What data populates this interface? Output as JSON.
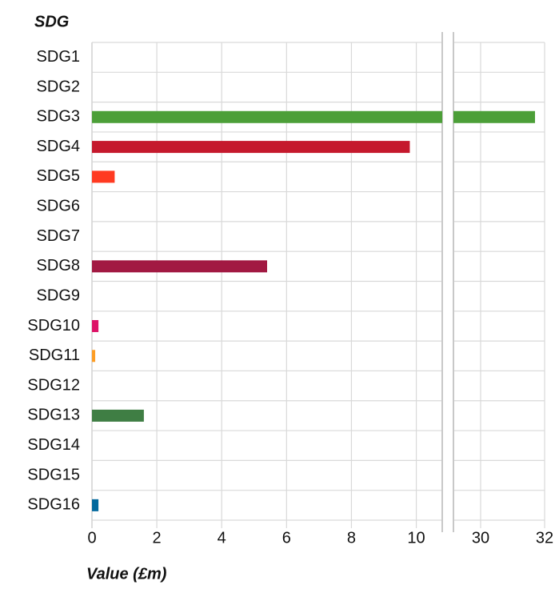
{
  "chart_data": {
    "type": "bar",
    "orientation": "horizontal",
    "y_axis_title": "SDG",
    "x_axis_label": "Value (£m)",
    "categories": [
      "SDG1",
      "SDG2",
      "SDG3",
      "SDG4",
      "SDG5",
      "SDG6",
      "SDG7",
      "SDG8",
      "SDG9",
      "SDG10",
      "SDG11",
      "SDG12",
      "SDG13",
      "SDG14",
      "SDG15",
      "SDG16"
    ],
    "values": [
      0,
      0,
      31.7,
      9.8,
      0.7,
      0,
      0,
      5.4,
      0,
      0.2,
      0.1,
      0,
      1.6,
      0,
      0,
      0.2
    ],
    "colors": [
      "#4c9f38",
      "#4c9f38",
      "#4c9f38",
      "#c5192d",
      "#ff3a21",
      "#26bde2",
      "#fcc30b",
      "#a21942",
      "#fd6925",
      "#dd1367",
      "#fd9d24",
      "#bf8b2e",
      "#3f7e44",
      "#0a97d9",
      "#56c02b",
      "#00689d"
    ],
    "xlim_segments": [
      [
        0,
        10.8
      ],
      [
        29.15,
        32
      ]
    ],
    "xticks": [
      0,
      2,
      4,
      6,
      8,
      10,
      30,
      32
    ],
    "grid": true
  }
}
